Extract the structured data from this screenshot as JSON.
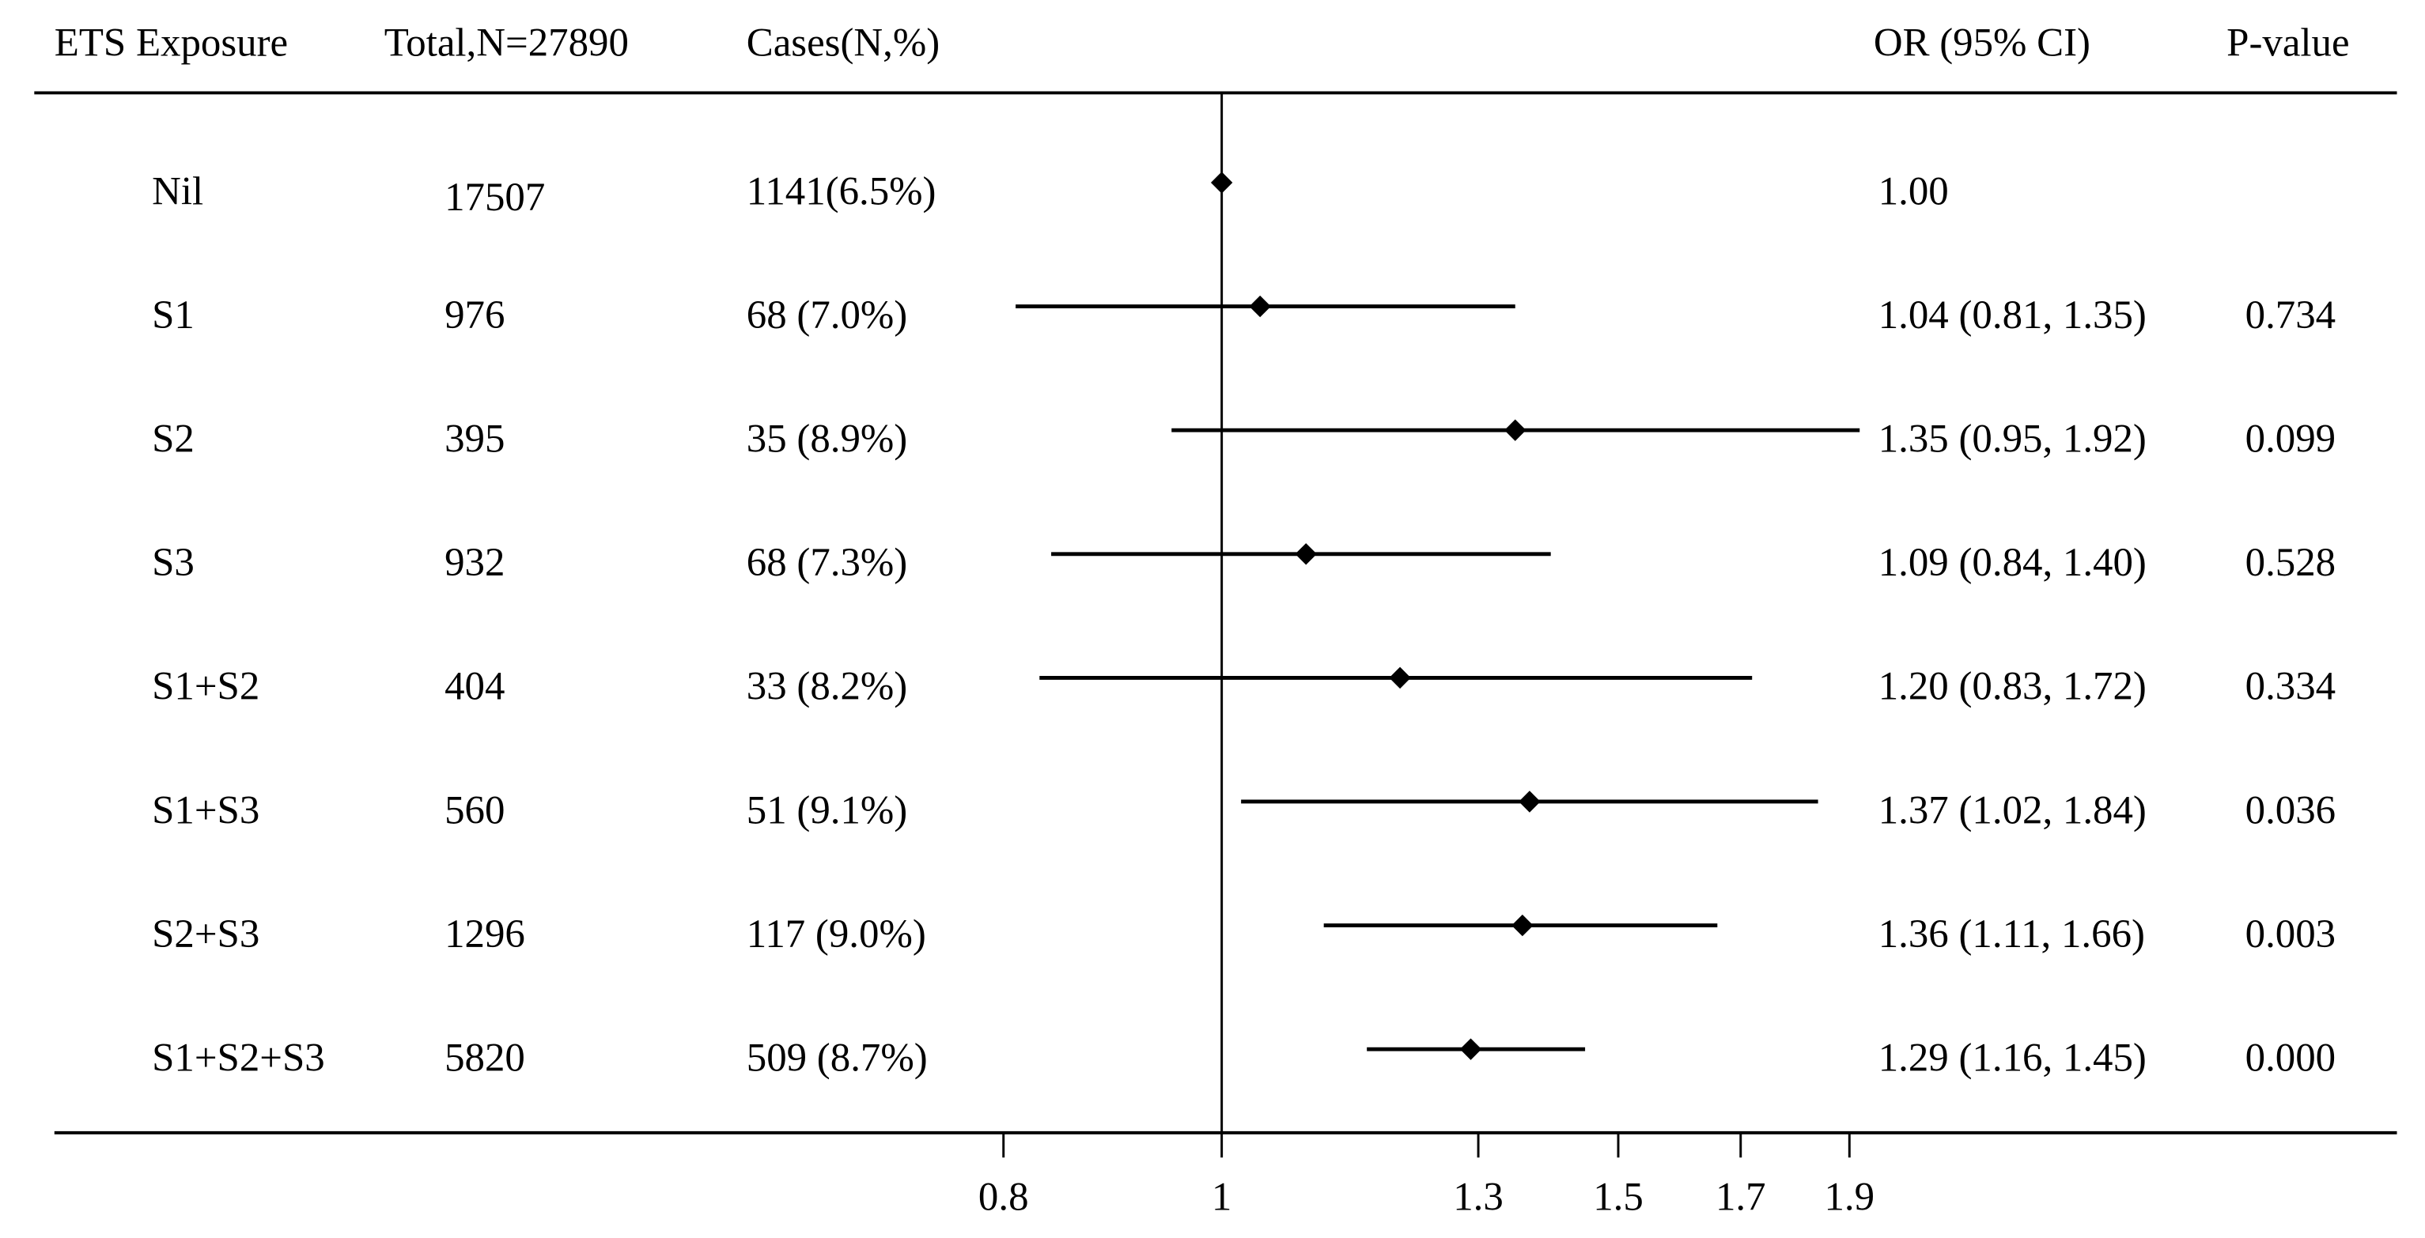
{
  "chart_data": {
    "type": "forest",
    "columns": [
      "ETS Exposure",
      "Total,N=27890",
      "Cases(N,%)",
      "OR (95% CI)",
      "P-value"
    ],
    "categories": [
      "Nil",
      "S1",
      "S2",
      "S3",
      "S1+S2",
      "S1+S3",
      "S2+S3",
      "S1+S2+S3"
    ],
    "totals": [
      17507,
      976,
      395,
      932,
      404,
      560,
      1296,
      5820
    ],
    "cases": [
      "1141(6.5%)",
      "68 (7.0%)",
      "35 (8.9%)",
      "68 (7.3%)",
      "33 (8.2%)",
      "51 (9.1%)",
      "117 (9.0%)",
      "509 (8.7%)"
    ],
    "values": [
      1.0,
      1.04,
      1.35,
      1.09,
      1.2,
      1.37,
      1.36,
      1.29
    ],
    "value_labels": [
      "1.00",
      "1.04 (0.81, 1.35)",
      "1.35 (0.95, 1.92)",
      "1.09 (0.84, 1.40)",
      "1.20 (0.83, 1.72)",
      "1.37 (1.02, 1.84)",
      "1.36 (1.11, 1.66)",
      "1.29 (1.16, 1.45)"
    ],
    "lower": [
      null,
      0.81,
      0.95,
      0.84,
      0.83,
      1.02,
      1.11,
      1.16
    ],
    "upper": [
      null,
      1.35,
      1.92,
      1.4,
      1.72,
      1.84,
      1.66,
      1.45
    ],
    "p_values": [
      null,
      "0.734",
      "0.099",
      "0.528",
      "0.334",
      "0.036",
      "0.003",
      "0.000"
    ],
    "xlim": [
      0.8,
      1.92
    ],
    "xticks": [
      0.8,
      1,
      1.3,
      1.5,
      1.7,
      1.9
    ],
    "log_scale": true,
    "reference_line": 1,
    "color": "#000000"
  }
}
